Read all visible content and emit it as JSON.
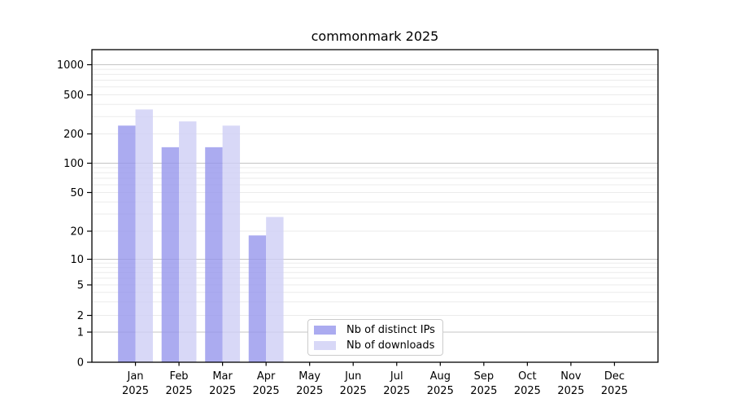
{
  "chart_data": {
    "type": "bar",
    "title": "commonmark 2025",
    "x_axis": {
      "categories": [
        {
          "month": "Jan",
          "year": "2025"
        },
        {
          "month": "Feb",
          "year": "2025"
        },
        {
          "month": "Mar",
          "year": "2025"
        },
        {
          "month": "Apr",
          "year": "2025"
        },
        {
          "month": "May",
          "year": "2025"
        },
        {
          "month": "Jun",
          "year": "2025"
        },
        {
          "month": "Jul",
          "year": "2025"
        },
        {
          "month": "Aug",
          "year": "2025"
        },
        {
          "month": "Sep",
          "year": "2025"
        },
        {
          "month": "Oct",
          "year": "2025"
        },
        {
          "month": "Nov",
          "year": "2025"
        },
        {
          "month": "Dec",
          "year": "2025"
        }
      ]
    },
    "y_axis": {
      "scale": "symlog",
      "range": [
        0,
        1000
      ],
      "tick_values": [
        0,
        1,
        2,
        5,
        10,
        20,
        50,
        100,
        200,
        500,
        1000
      ],
      "tick_labels": [
        "0",
        "1",
        "2",
        "5",
        "10",
        "20",
        "50",
        "100",
        "200",
        "500",
        "1000"
      ],
      "major_grid_values": [
        1,
        10,
        100,
        1000
      ],
      "minor_grid_values": [
        2,
        3,
        4,
        5,
        6,
        7,
        8,
        9,
        20,
        30,
        40,
        50,
        60,
        70,
        80,
        90,
        200,
        300,
        400,
        500,
        600,
        700,
        800,
        900
      ]
    },
    "series": [
      {
        "name": "Nb of distinct IPs",
        "color": "#9696ec",
        "opacity": 0.8,
        "values": [
          243,
          146,
          146,
          18,
          0,
          0,
          0,
          0,
          0,
          0,
          0,
          0
        ]
      },
      {
        "name": "Nb of downloads",
        "color": "#cecef5",
        "opacity": 0.8,
        "values": [
          355,
          268,
          243,
          28,
          0,
          0,
          0,
          0,
          0,
          0,
          0,
          0
        ]
      }
    ],
    "legend": {
      "position": "lower center",
      "entries": [
        "Nb of distinct IPs",
        "Nb of downloads"
      ]
    },
    "grid": true
  },
  "colors": {
    "background": "#ffffff",
    "spine": "#000000",
    "text": "#000000",
    "major_grid": "#c4c4c4",
    "minor_grid": "#ebebeb",
    "legend_border": "#cccccc"
  }
}
